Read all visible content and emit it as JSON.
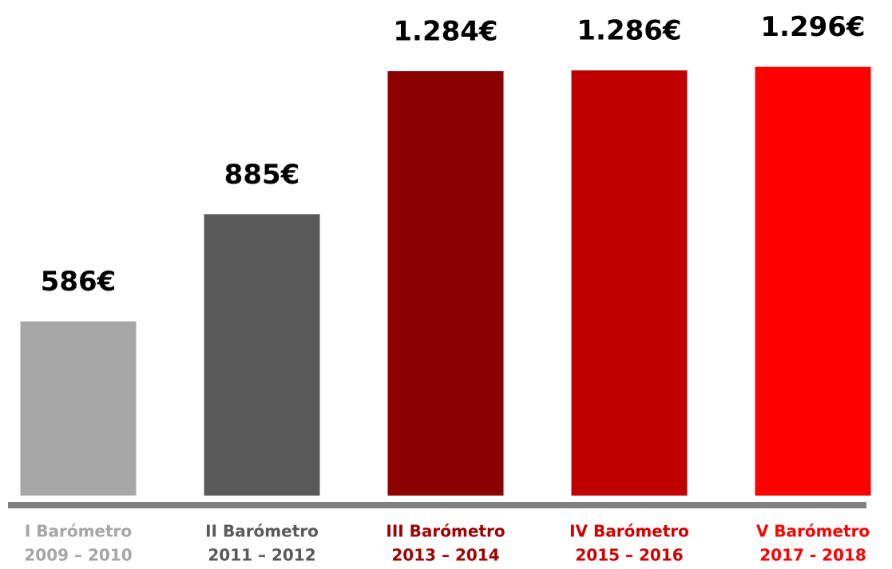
{
  "chart_data": {
    "type": "bar",
    "categories": [
      [
        "I Barómetro",
        "2009 – 2010"
      ],
      [
        "II Barómetro",
        "2011 – 2012"
      ],
      [
        "III Barómetro",
        "2013 – 2014"
      ],
      [
        "IV Barómetro",
        "2015 – 2016"
      ],
      [
        "V Barómetro",
        "2017 - 2018"
      ]
    ],
    "values": [
      586,
      885,
      1284,
      1286,
      1296
    ],
    "value_labels": [
      "586€",
      "885€",
      "1.284€",
      "1.286€",
      "1.296€"
    ],
    "colors": [
      "#a6a6a6",
      "#595959",
      "#8b0000",
      "#c00000",
      "#ff0000"
    ],
    "label_colors": [
      "#a6a6a6",
      "#595959",
      "#a00000",
      "#d00000",
      "#ff0000"
    ],
    "ylim": [
      100,
      1400
    ]
  }
}
